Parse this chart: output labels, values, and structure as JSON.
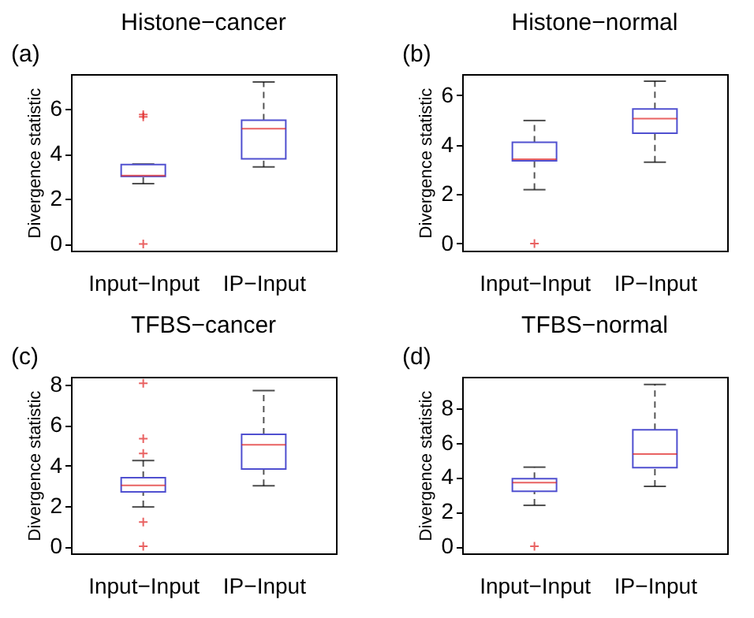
{
  "chart_data": [
    {
      "type": "box",
      "title": "Histone−cancer",
      "annotations": [
        "(a)"
      ],
      "ylabel": "Divergence statistic",
      "categories": [
        "Input−Input",
        "IP−Input"
      ],
      "ylim": [
        -0.3,
        7.55
      ],
      "yticks": [
        0,
        2,
        4,
        6
      ],
      "grid": false,
      "color": "#5050d0",
      "boxes": [
        {
          "low": 2.68,
          "q1": 3.0,
          "median": 3.04,
          "q3": 3.53,
          "high": 3.55,
          "outliers": [
            0,
            5.65,
            5.75
          ]
        },
        {
          "low": 3.42,
          "q1": 3.78,
          "median": 5.12,
          "q3": 5.5,
          "high": 7.2
        }
      ]
    },
    {
      "type": "box",
      "title": "Histone−normal",
      "annotations": [
        "(b)"
      ],
      "ylabel": "Divergence statistic",
      "categories": [
        "Input−Input",
        "IP−Input"
      ],
      "ylim": [
        -0.29,
        6.86
      ],
      "yticks": [
        0,
        2,
        4,
        6
      ],
      "grid": false,
      "color": "#5050d0",
      "boxes": [
        {
          "low": 2.18,
          "q1": 3.35,
          "median": 3.41,
          "q3": 4.1,
          "high": 4.98,
          "outliers": [
            0
          ]
        },
        {
          "low": 3.29,
          "q1": 4.47,
          "median": 5.06,
          "q3": 5.45,
          "high": 6.57
        }
      ]
    },
    {
      "type": "box",
      "title": "TFBS−cancer",
      "annotations": [
        "(c)"
      ],
      "ylabel": "Divergence statistic",
      "categories": [
        "Input−Input",
        "IP−Input"
      ],
      "ylim": [
        -0.35,
        8.4
      ],
      "yticks": [
        0,
        2,
        4,
        6,
        8
      ],
      "grid": false,
      "color": "#5050d0",
      "boxes": [
        {
          "low": 1.95,
          "q1": 2.7,
          "median": 3.02,
          "q3": 3.4,
          "high": 4.25,
          "outliers": [
            0,
            1.2,
            4.6,
            5.33,
            8.08
          ]
        },
        {
          "low": 3.0,
          "q1": 3.83,
          "median": 5.03,
          "q3": 5.55,
          "high": 7.72
        }
      ]
    },
    {
      "type": "box",
      "title": "TFBS−normal",
      "annotations": [
        "(d)"
      ],
      "ylabel": "Divergence statistic",
      "categories": [
        "Input−Input",
        "IP−Input"
      ],
      "ylim": [
        -0.41,
        9.81
      ],
      "yticks": [
        0,
        2,
        4,
        6,
        8
      ],
      "grid": false,
      "color": "#5050d0",
      "boxes": [
        {
          "low": 2.37,
          "q1": 3.18,
          "median": 3.68,
          "q3": 3.91,
          "high": 4.58,
          "outliers": [
            0
          ]
        },
        {
          "low": 3.47,
          "q1": 4.55,
          "median": 5.34,
          "q3": 6.74,
          "high": 9.37
        }
      ]
    }
  ]
}
